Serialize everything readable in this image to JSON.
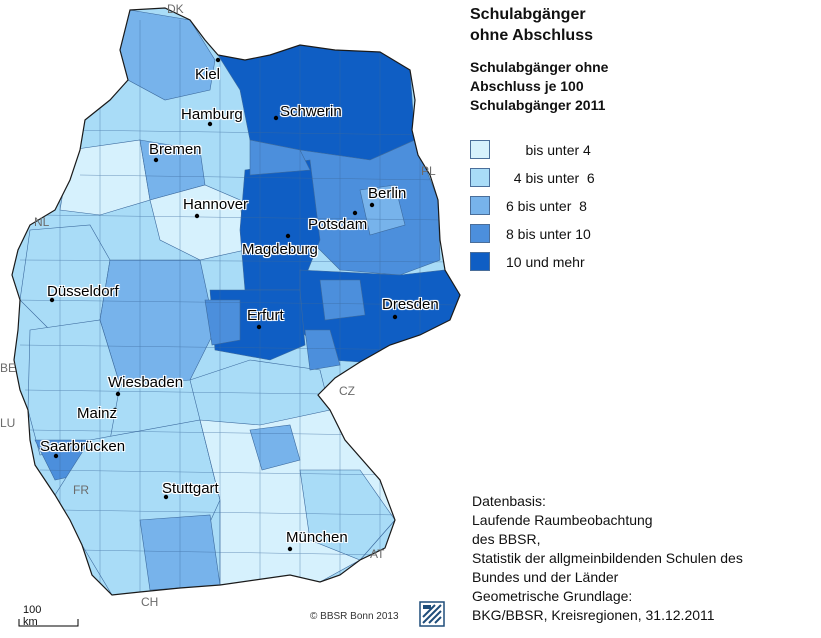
{
  "title": {
    "line1": "Schulabgänger",
    "line2": "ohne Abschluss"
  },
  "subtitle": {
    "line1": "Schulabgänger ohne",
    "line2": "Abschluss je 100",
    "line3": "Schulabgänger 2011"
  },
  "legend": [
    {
      "label": "     bis unter 4",
      "color": "#d6f1fd"
    },
    {
      "label": "  4 bis unter  6",
      "color": "#a9dcf7"
    },
    {
      "label": "6 bis unter  8",
      "color": "#77b3eb"
    },
    {
      "label": "8 bis unter 10",
      "color": "#4c8fdc"
    },
    {
      "label": "10 und mehr",
      "color": "#0f5ec4"
    }
  ],
  "cities": {
    "kiel": "Kiel",
    "hamburg": "Hamburg",
    "schwerin": "Schwerin",
    "bremen": "Bremen",
    "berlin": "Berlin",
    "hannover": "Hannover",
    "potsdam": "Potsdam",
    "magdeburg": "Magdeburg",
    "duesseldorf": "Düsseldorf",
    "dresden": "Dresden",
    "erfurt": "Erfurt",
    "wiesbaden": "Wiesbaden",
    "mainz": "Mainz",
    "saarbruecken": "Saarbrücken",
    "stuttgart": "Stuttgart",
    "muenchen": "München"
  },
  "countries": {
    "dk": "DK",
    "pl": "PL",
    "nl": "NL",
    "be": "BE",
    "lu": "LU",
    "fr": "FR",
    "cz": "CZ",
    "at": "AT",
    "ch": "CH"
  },
  "source": {
    "line1": "Datenbasis:",
    "line2": "Laufende Raumbeobachtung",
    "line3": "des BBSR,",
    "line4": "Statistik der allgmeinbildenden Schulen des",
    "line5": "Bundes und der Länder",
    "line6": "Geometrische Grundlage:",
    "line7": "BKG/BBSR, Kreisregionen, 31.12.2011"
  },
  "scale": "100 km",
  "copyright": "© BBSR Bonn 2013",
  "colors": {
    "border": "#3c6a9e",
    "outline": "#1a1a1a"
  }
}
